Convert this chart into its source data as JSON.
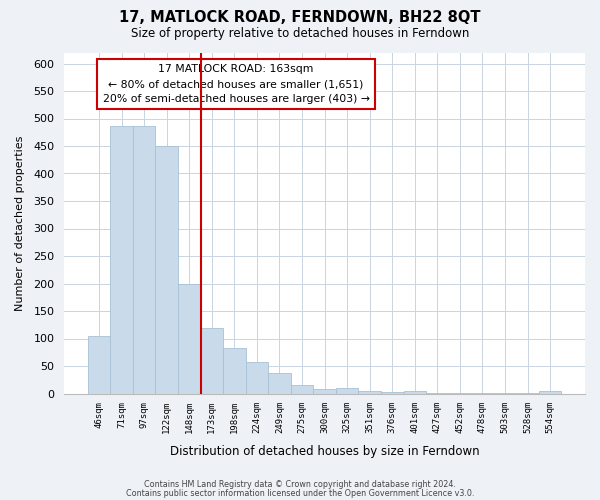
{
  "title": "17, MATLOCK ROAD, FERNDOWN, BH22 8QT",
  "subtitle": "Size of property relative to detached houses in Ferndown",
  "xlabel": "Distribution of detached houses by size in Ferndown",
  "ylabel": "Number of detached properties",
  "bar_values": [
    105,
    487,
    487,
    450,
    200,
    120,
    82,
    57,
    38,
    15,
    9,
    10,
    4,
    2,
    4,
    1,
    1,
    1,
    1,
    1,
    5
  ],
  "bar_labels": [
    "46sqm",
    "71sqm",
    "97sqm",
    "122sqm",
    "148sqm",
    "173sqm",
    "198sqm",
    "224sqm",
    "249sqm",
    "275sqm",
    "300sqm",
    "325sqm",
    "351sqm",
    "376sqm",
    "401sqm",
    "427sqm",
    "452sqm",
    "478sqm",
    "503sqm",
    "528sqm",
    "554sqm"
  ],
  "bar_color": "#c9daea",
  "bar_edge_color": "#a8c0d6",
  "vline_index": 5,
  "vline_color": "#cc0000",
  "annotation_title": "17 MATLOCK ROAD: 163sqm",
  "annotation_line1": "← 80% of detached houses are smaller (1,651)",
  "annotation_line2": "20% of semi-detached houses are larger (403) →",
  "ylim": [
    0,
    620
  ],
  "yticks": [
    0,
    50,
    100,
    150,
    200,
    250,
    300,
    350,
    400,
    450,
    500,
    550,
    600
  ],
  "footnote1": "Contains HM Land Registry data © Crown copyright and database right 2024.",
  "footnote2": "Contains public sector information licensed under the Open Government Licence v3.0.",
  "background_color": "#eef2f7",
  "plot_bg_color": "#ffffff",
  "grid_color": "#c8d4e0"
}
